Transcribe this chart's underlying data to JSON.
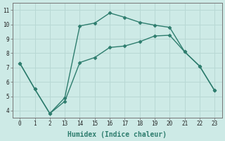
{
  "line1_x_idx": [
    0,
    1,
    2,
    3,
    4,
    5,
    6,
    7,
    8,
    9,
    10,
    11,
    12,
    13
  ],
  "line1_y": [
    7.3,
    5.5,
    3.8,
    4.9,
    9.9,
    10.1,
    10.8,
    10.5,
    10.15,
    9.95,
    9.8,
    8.1,
    7.1,
    5.4
  ],
  "line2_x_idx": [
    0,
    1,
    2,
    3,
    4,
    5,
    6,
    7,
    8,
    9,
    10,
    11,
    12,
    13
  ],
  "line2_y": [
    7.3,
    5.5,
    3.8,
    4.65,
    7.35,
    7.7,
    8.4,
    8.5,
    8.8,
    9.2,
    9.25,
    8.1,
    7.1,
    5.4
  ],
  "tick_positions": [
    0,
    1,
    2,
    3,
    4,
    5,
    6,
    7,
    8,
    9,
    10,
    11,
    12,
    13
  ],
  "tick_labels": [
    "0",
    "1",
    "2",
    "13",
    "14",
    "15",
    "16",
    "17",
    "18",
    "19",
    "20",
    "21",
    "22",
    "23"
  ],
  "line_color": "#2e7d6e",
  "bg_color": "#cdeae6",
  "grid_color": "#b8d8d4",
  "xlabel": "Humidex (Indice chaleur)",
  "ylim": [
    3.5,
    11.5
  ],
  "xlim": [
    -0.5,
    13.5
  ],
  "yticks": [
    4,
    5,
    6,
    7,
    8,
    9,
    10,
    11
  ],
  "ytick_labels": [
    "4",
    "5",
    "6",
    "7",
    "8",
    "9",
    "10",
    "11"
  ],
  "marker": "D",
  "marker_size": 2.5,
  "line_width": 1.0
}
